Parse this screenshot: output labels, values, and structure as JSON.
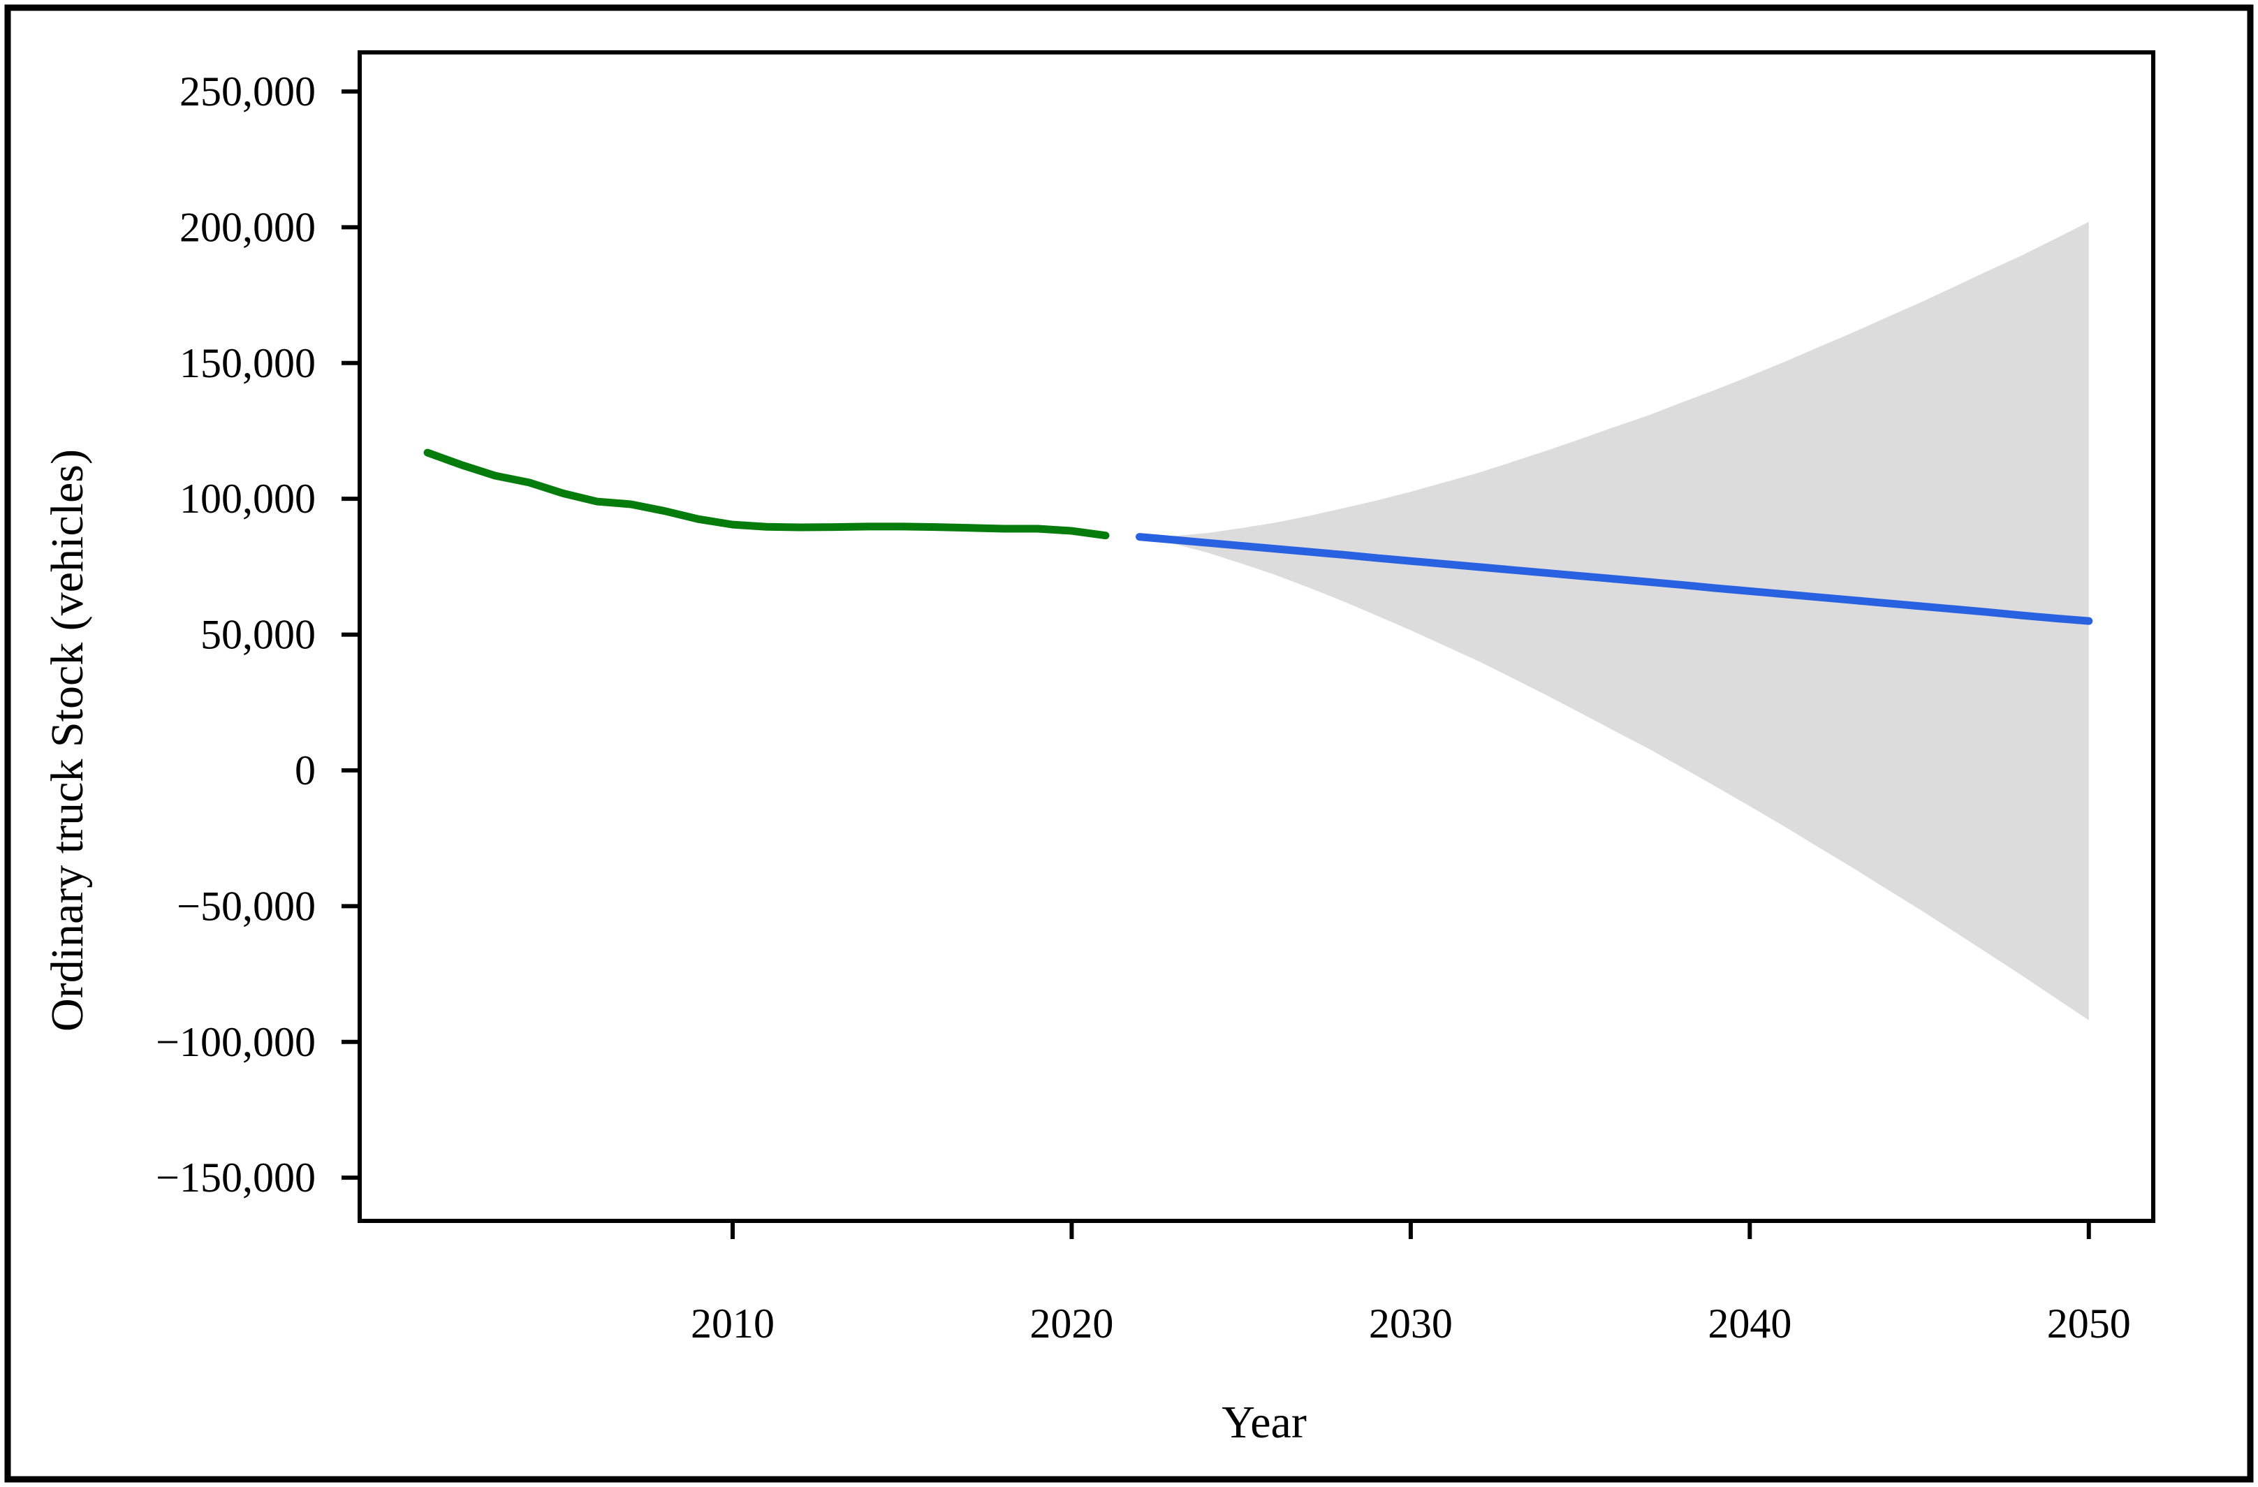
{
  "chart_data": {
    "type": "line",
    "title": "",
    "xlabel": "Year",
    "ylabel": "Ordinary truck Stock (vehicles)",
    "xlim": [
      1999,
      2051.9
    ],
    "ylim": [
      -165900,
      264400
    ],
    "grid": false,
    "legend_position": "none",
    "x_ticks": [
      {
        "v": 2010,
        "label": "2010"
      },
      {
        "v": 2020,
        "label": "2020"
      },
      {
        "v": 2030,
        "label": "2030"
      },
      {
        "v": 2040,
        "label": "2040"
      },
      {
        "v": 2050,
        "label": "2050"
      }
    ],
    "y_ticks": [
      {
        "v": 250000,
        "label": "250,000"
      },
      {
        "v": 200000,
        "label": "200,000"
      },
      {
        "v": 150000,
        "label": "150,000"
      },
      {
        "v": 100000,
        "label": "100,000"
      },
      {
        "v": 50000,
        "label": "50,000"
      },
      {
        "v": 0,
        "label": "0"
      },
      {
        "v": -50000,
        "label": "−50,000"
      },
      {
        "v": -100000,
        "label": "−100,000"
      },
      {
        "v": -150000,
        "label": "−150,000"
      }
    ],
    "series": [
      {
        "name": "historical-stock",
        "color": "#067c0c",
        "x": [
          2001,
          2002,
          2003,
          2004,
          2005,
          2006,
          2007,
          2008,
          2009,
          2010,
          2011,
          2012,
          2013,
          2014,
          2015,
          2016,
          2017,
          2018,
          2019,
          2020,
          2021
        ],
        "values": [
          117000,
          112500,
          108500,
          106000,
          102000,
          99000,
          98000,
          95500,
          92500,
          90500,
          89700,
          89500,
          89600,
          89800,
          89800,
          89600,
          89300,
          89000,
          89000,
          88200,
          86500
        ]
      },
      {
        "name": "forecast-mean",
        "color": "#2962e0",
        "x": [
          2022,
          2023,
          2024,
          2025,
          2026,
          2027,
          2028,
          2029,
          2030,
          2031,
          2032,
          2033,
          2034,
          2035,
          2036,
          2037,
          2038,
          2039,
          2040,
          2041,
          2042,
          2043,
          2044,
          2045,
          2046,
          2047,
          2048,
          2049,
          2050
        ],
        "values": [
          86000,
          84900,
          83800,
          82700,
          81600,
          80500,
          79400,
          78200,
          77100,
          76000,
          74900,
          73800,
          72700,
          71600,
          70500,
          69400,
          68300,
          67100,
          66000,
          64900,
          63800,
          62700,
          61600,
          60500,
          59400,
          58300,
          57100,
          56000,
          55000
        ]
      }
    ],
    "confidence_band": {
      "color": "#dcdcdc",
      "x": [
        2022,
        2023,
        2024,
        2025,
        2026,
        2027,
        2028,
        2029,
        2030,
        2031,
        2032,
        2033,
        2034,
        2035,
        2036,
        2037,
        2038,
        2039,
        2040,
        2041,
        2042,
        2043,
        2044,
        2045,
        2046,
        2047,
        2048,
        2049,
        2050
      ],
      "upper": [
        86000,
        86300,
        87400,
        89200,
        91200,
        93700,
        96500,
        99400,
        102600,
        106100,
        109600,
        113600,
        117700,
        122000,
        126400,
        130700,
        135500,
        140200,
        145200,
        150300,
        155700,
        161000,
        166600,
        172100,
        177900,
        183800,
        189500,
        195700,
        202000
      ],
      "lower": [
        86000,
        83500,
        80200,
        76200,
        72000,
        67300,
        62300,
        57000,
        51600,
        45900,
        40200,
        34000,
        27700,
        21200,
        14600,
        8100,
        1100,
        -6000,
        -13200,
        -20500,
        -28100,
        -35600,
        -43400,
        -51100,
        -59100,
        -67200,
        -75300,
        -83700,
        -92000
      ]
    },
    "colors": {
      "frame": "#000000",
      "background": "#ffffff",
      "figure_border": "#000000"
    }
  }
}
